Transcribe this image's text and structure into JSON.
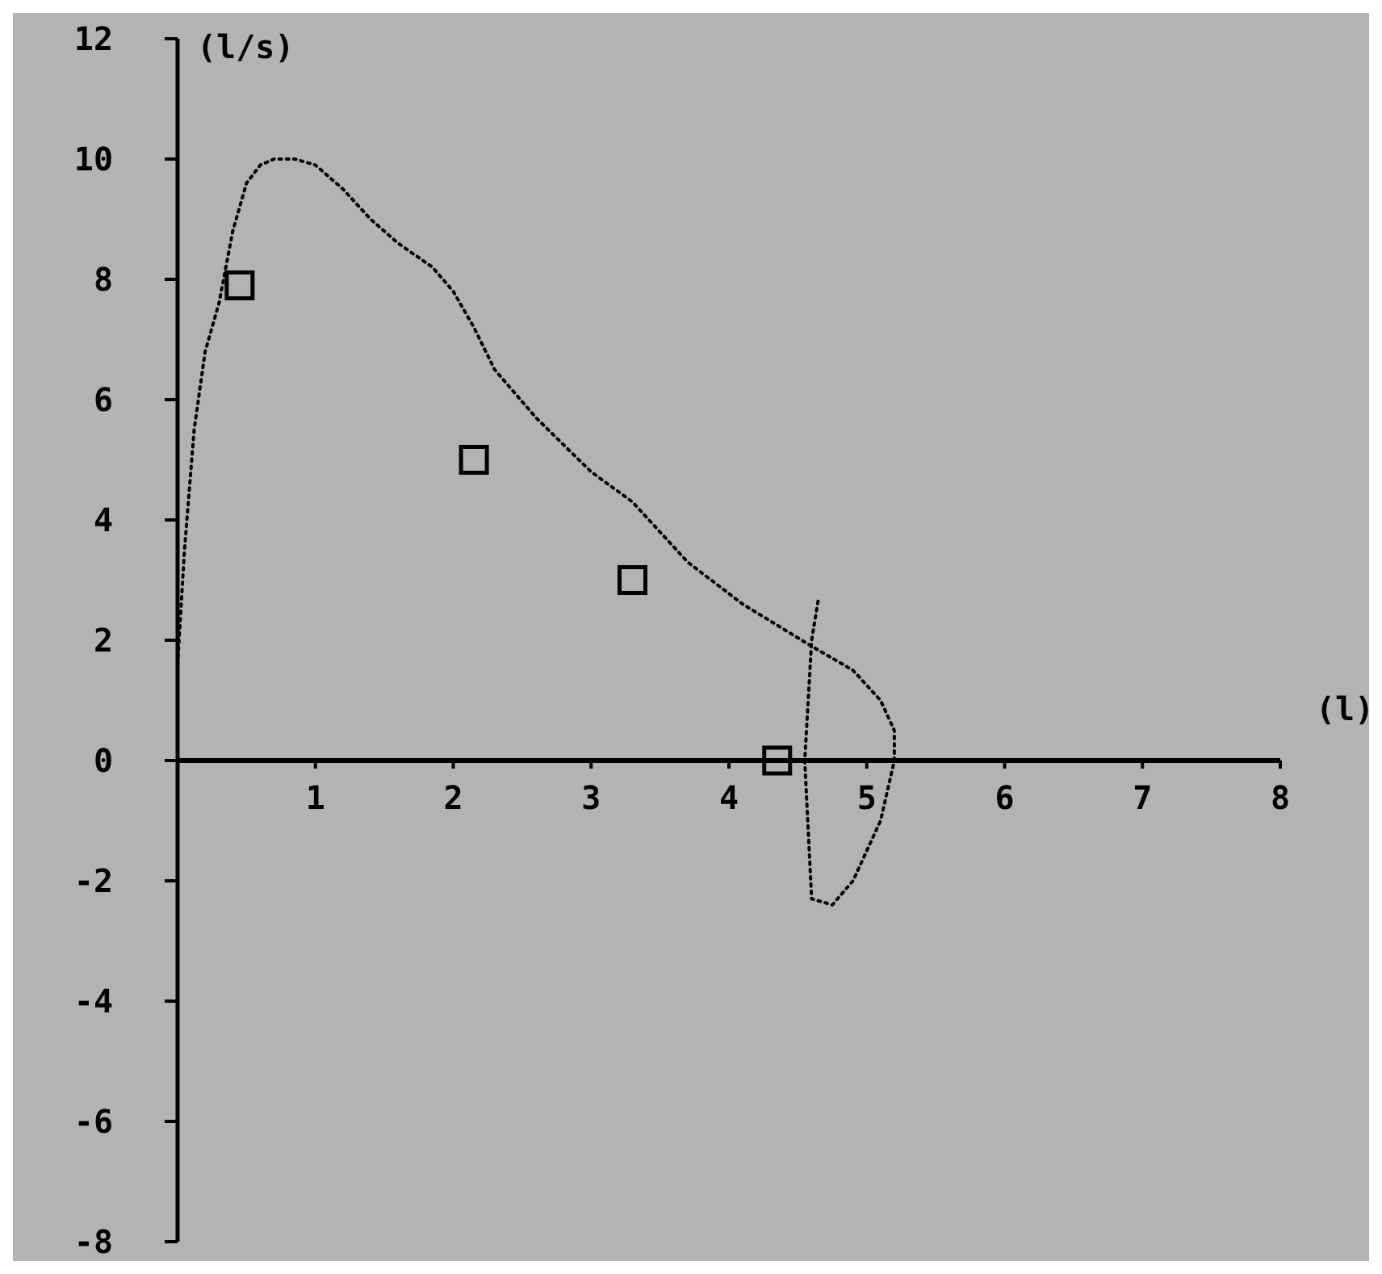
{
  "chart_data": {
    "type": "line",
    "xlabel": "(l)",
    "ylabel": "(l/s)",
    "xlim": [
      0,
      8
    ],
    "xticks": [
      {
        "value": 0,
        "label": null
      },
      1,
      2,
      3,
      4,
      5,
      6,
      7,
      8
    ],
    "ylim": [
      -8,
      12
    ],
    "yticks": [
      -8,
      -6,
      -4,
      -2,
      0,
      2,
      4,
      6,
      8,
      10,
      12
    ],
    "grid": false,
    "series": [
      {
        "color": "#000000",
        "line_style": "dotted",
        "x": [
          0,
          0.05,
          0.12,
          0.2,
          0.3,
          0.4,
          0.5,
          0.6,
          0.7,
          0.85,
          1.0,
          1.2,
          1.4,
          1.6,
          1.85,
          2.0,
          2.15,
          2.3,
          2.6,
          3.0,
          3.3,
          3.7,
          4.1,
          4.6,
          4.9,
          5.1,
          5.2,
          5.2,
          5.1,
          4.9,
          4.75,
          4.6,
          4.55,
          4.6,
          4.65
        ],
        "values": [
          1.6,
          3.5,
          5.5,
          6.8,
          7.6,
          8.8,
          9.6,
          9.9,
          10.0,
          10.0,
          9.9,
          9.5,
          9.0,
          8.6,
          8.2,
          7.8,
          7.2,
          6.5,
          5.7,
          4.8,
          4.3,
          3.3,
          2.6,
          1.9,
          1.5,
          1.0,
          0.5,
          0,
          -1.0,
          -2.0,
          -2.4,
          -2.3,
          0,
          2.0,
          2.7
        ]
      },
      {
        "type": "scatter",
        "color": "#000000",
        "marker": "square",
        "x": [
          0.45,
          2.15,
          3.3,
          4.35
        ],
        "values": [
          7.9,
          5.0,
          3.0,
          0
        ]
      }
    ]
  }
}
